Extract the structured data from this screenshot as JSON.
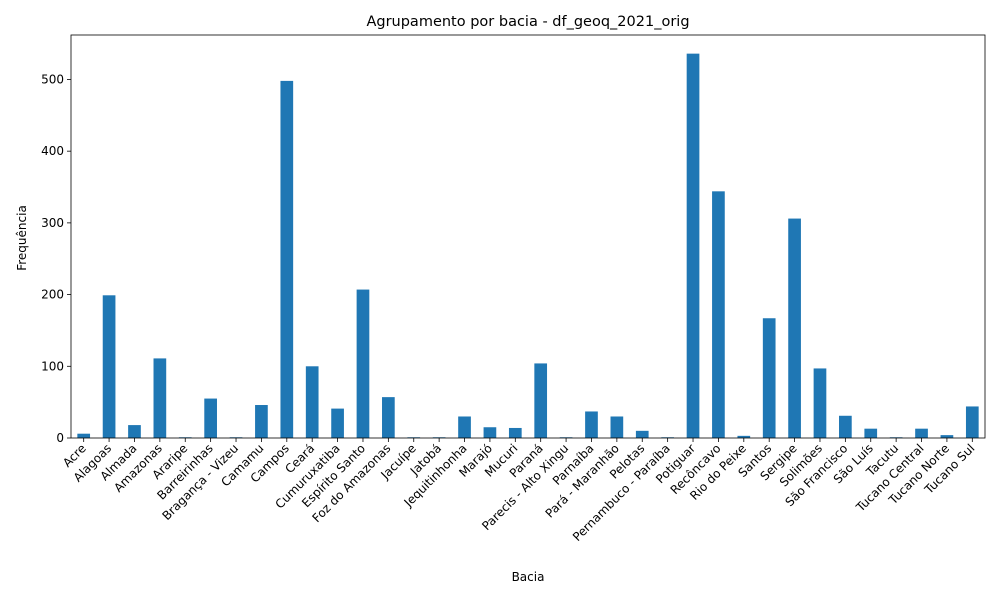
{
  "chart_data": {
    "type": "bar",
    "title": "Agrupamento por bacia - df_geoq_2021_orig",
    "xlabel": "Bacia",
    "ylabel": "Frequência",
    "ylim": [
      0,
      562
    ],
    "yticks": [
      0,
      100,
      200,
      300,
      400,
      500
    ],
    "bar_color": "#1f77b4",
    "grid": false,
    "categories": [
      "Acre",
      "Alagoas",
      "Almada",
      "Amazonas",
      "Araripe",
      "Barreirinhas",
      "Bragança - Vizeu",
      "Camamu",
      "Campos",
      "Ceará",
      "Cumuruxatiba",
      "Espírito Santo",
      "Foz do Amazonas",
      "Jacuípe",
      "Jatobá",
      "Jequitinhonha",
      "Marajó",
      "Mucuri",
      "Paraná",
      "Parecis - Alto Xingu",
      "Parnaíba",
      "Pará - Maranhão",
      "Pelotas",
      "Pernambuco - Paraíba",
      "Potiguar",
      "Recôncavo",
      "Rio do Peixe",
      "Santos",
      "Sergipe",
      "Solimões",
      "São Francisco",
      "São Luís",
      "Tacutu",
      "Tucano Central",
      "Tucano Norte",
      "Tucano Sul"
    ],
    "values": [
      6,
      199,
      18,
      111,
      1,
      55,
      1,
      46,
      498,
      100,
      41,
      207,
      57,
      1,
      1,
      30,
      15,
      14,
      104,
      1,
      37,
      30,
      10,
      1,
      536,
      344,
      3,
      167,
      306,
      97,
      31,
      13,
      1,
      13,
      4,
      44
    ]
  }
}
